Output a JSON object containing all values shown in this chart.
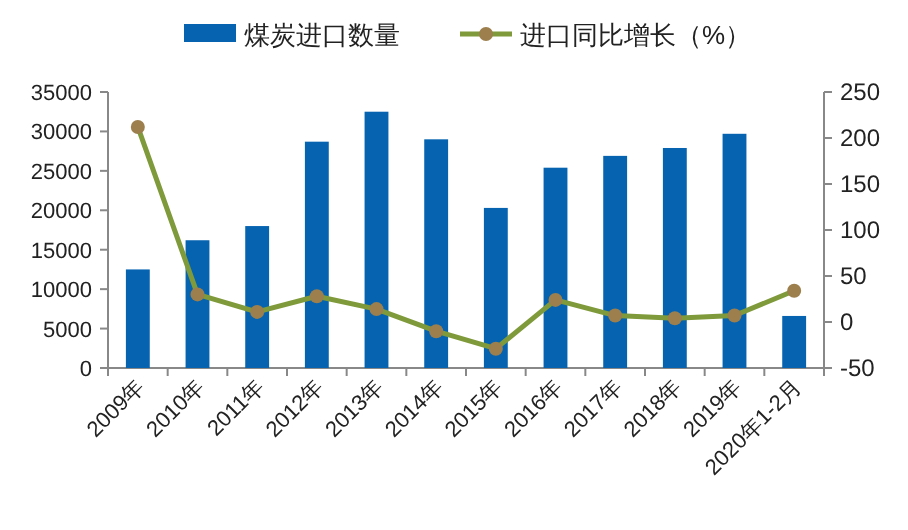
{
  "chart_data": {
    "type": "bar",
    "categories": [
      "2009年",
      "2010年",
      "2011年",
      "2012年",
      "2013年",
      "2014年",
      "2015年",
      "2016年",
      "2017年",
      "2018年",
      "2019年",
      "2020年1-2月"
    ],
    "series": [
      {
        "name": "煤炭进口数量",
        "color": "#0563b0",
        "values": [
          12500,
          16200,
          18000,
          28700,
          32500,
          29000,
          20300,
          25400,
          26900,
          27900,
          29700,
          6600
        ]
      },
      {
        "name": "进口同比增长（%）",
        "type": "line",
        "axis": "y2",
        "color": "#7f9a3a",
        "marker": "circle",
        "values": [
          212,
          30,
          11,
          28,
          14,
          -10,
          -29,
          24,
          7,
          4,
          7,
          34
        ]
      }
    ],
    "ylim": [
      0,
      35000
    ],
    "yticks": [
      0,
      5000,
      10000,
      15000,
      20000,
      25000,
      30000,
      35000
    ],
    "y2lim": [
      -50,
      250
    ],
    "y2ticks": [
      -50,
      0,
      50,
      100,
      150,
      200,
      250
    ],
    "legend": "top",
    "grid": false
  }
}
